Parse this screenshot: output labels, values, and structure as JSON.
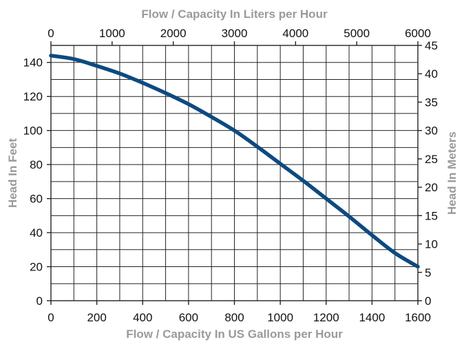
{
  "chart_data": {
    "type": "line",
    "title": "",
    "xlabel": "Flow / Capacity In US Gallons per Hour",
    "ylabel": "Head In Feet",
    "x2label": "Flow / Capacity In Liters per Hour",
    "y2label": "Head In Meters",
    "xlim": [
      0,
      1600
    ],
    "ylim": [
      0,
      150
    ],
    "x2lim": [
      0,
      6000
    ],
    "y2lim": [
      0,
      45
    ],
    "x_ticks": [
      0,
      200,
      400,
      600,
      800,
      1000,
      1200,
      1400,
      1600
    ],
    "y_ticks": [
      0,
      20,
      40,
      60,
      80,
      100,
      120,
      140
    ],
    "x2_ticks": [
      0,
      1000,
      2000,
      3000,
      4000,
      5000,
      6000
    ],
    "y2_ticks": [
      0,
      5,
      10,
      15,
      20,
      25,
      30,
      35,
      40,
      45
    ],
    "grid": true,
    "line_color": "#0d4a80",
    "series": [
      {
        "x": [
          0,
          100,
          200,
          300,
          400,
          500,
          600,
          700,
          800,
          900,
          1000,
          1100,
          1200,
          1300,
          1400,
          1500,
          1600
        ],
        "y": [
          144,
          142,
          138,
          133.5,
          128,
          122,
          115.5,
          108,
          100,
          90.5,
          80.5,
          70.5,
          60,
          49.5,
          38.5,
          28,
          20
        ]
      }
    ]
  }
}
